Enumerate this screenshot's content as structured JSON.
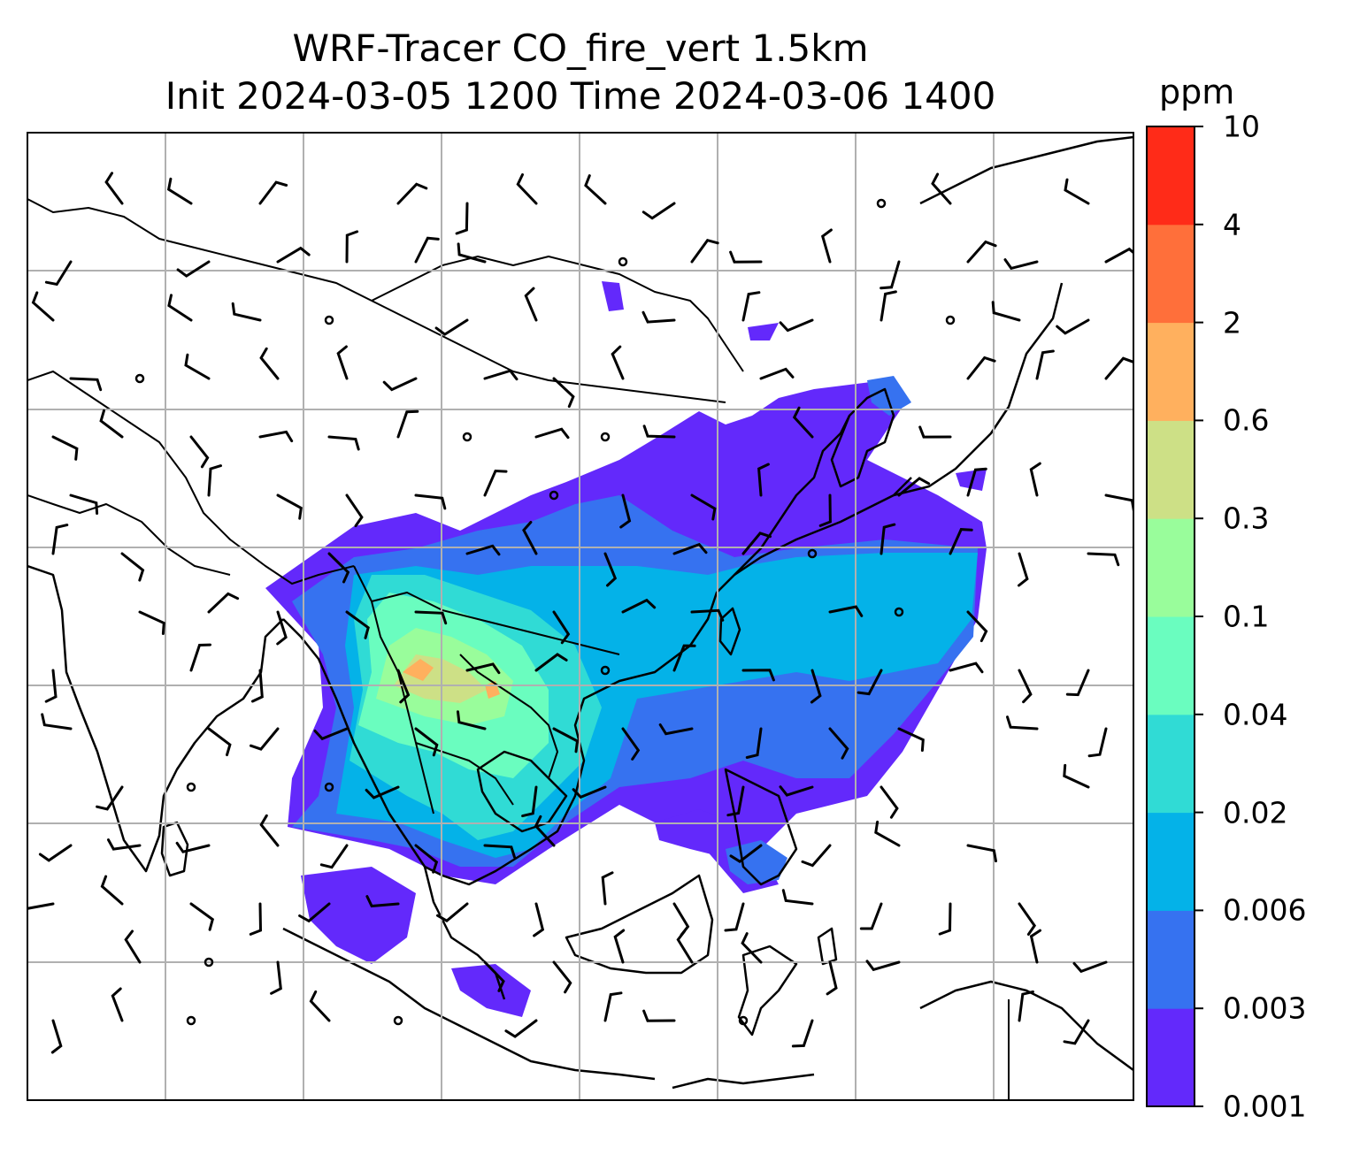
{
  "chart_data": {
    "type": "heatmap",
    "title": [
      "WRF-Tracer CO_fire_vert 1.5km",
      "Init 2024-03-05 1200 Time 2024-03-06 1400"
    ],
    "variable": "CO_fire_vert",
    "level": "1.5km",
    "init_time": "2024-03-05 1200",
    "valid_time": "2024-03-06 1400",
    "colorbar": {
      "unit": "ppm",
      "levels": [
        "0.001",
        "0.003",
        "0.006",
        "0.02",
        "0.04",
        "0.1",
        "0.3",
        "0.6",
        "2",
        "4",
        "10"
      ],
      "colors": [
        "#6329fb",
        "#3672f0",
        "#04b2e8",
        "#30dbd5",
        "#6afdbf",
        "#99fd9b",
        "#cde086",
        "#ffb05e",
        "#ff6f3a",
        "#ff2b18"
      ]
    },
    "overlays": [
      "coastlines",
      "country borders",
      "lat/lon gridlines",
      "wind barbs"
    ],
    "grid": true
  }
}
